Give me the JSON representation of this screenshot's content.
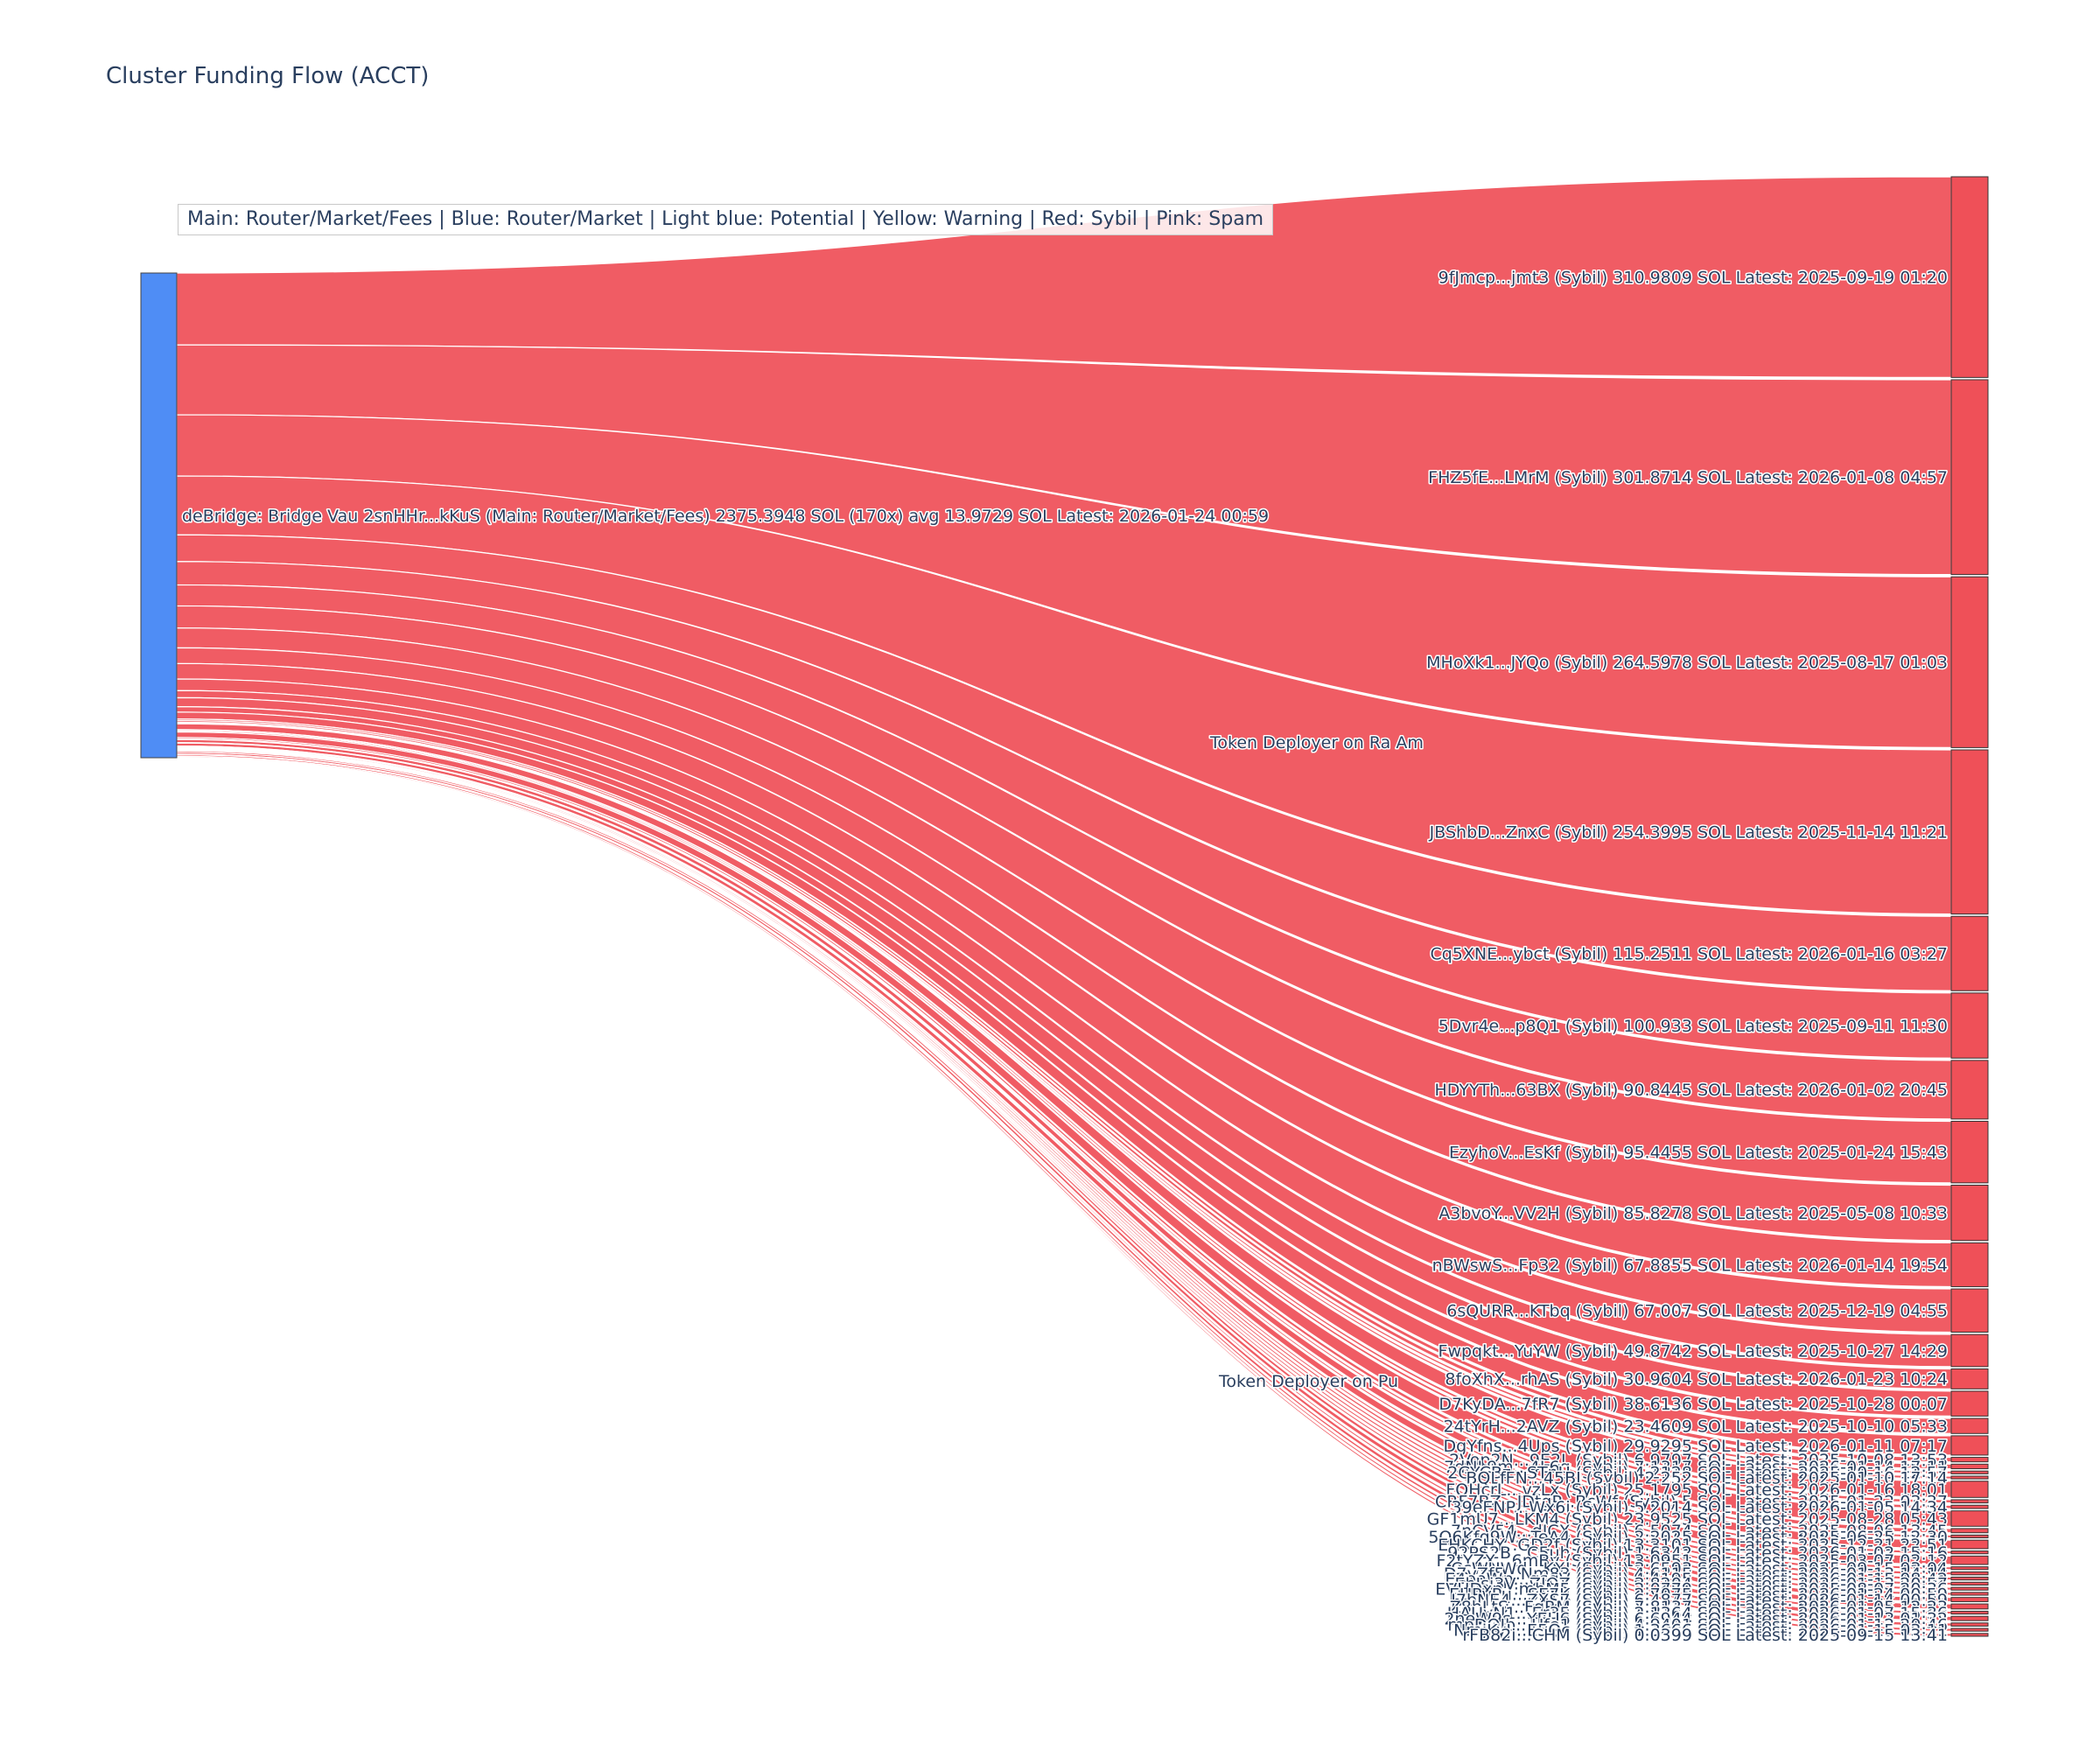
{
  "title": "Cluster Funding Flow (ACCT)",
  "legend_text": "Main: Router/Market/Fees  |  Blue: Router/Market | Light blue: Potential | Yellow: Warning | Red: Sybil | Pink: Spam",
  "colors": {
    "source_node": "#4f8df5",
    "sybil_node": "#ef5058",
    "link": "#ef5058",
    "text": "#2a3f5f"
  },
  "chart_data": {
    "type": "sankey",
    "source": {
      "label": "deBridge: Bridge Vau 2snHHr...kKuS (Main: Router/Market/Fees) 2375.3948 SOL (170x) avg 13.9729 SOL Latest: 2026-01-24 00:59",
      "total_sol": 2375.3948,
      "transfers": 170,
      "avg_sol": 13.9729
    },
    "intermediate_nodes": [
      {
        "label": "Token Deployer on Ra Am"
      },
      {
        "label": "Token Deployer on Pu"
      }
    ],
    "targets": [
      {
        "label": "9fJmcp...jmt3 (Sybil) 310.9809 SOL Latest: 2025-09-19 01:20",
        "value": 310.9809
      },
      {
        "label": "FHZ5fE...LMrM (Sybil) 301.8714 SOL Latest: 2026-01-08 04:57",
        "value": 301.8714
      },
      {
        "label": "MHoXk1...JYQo (Sybil) 264.5978 SOL Latest: 2025-08-17 01:03",
        "value": 264.5978
      },
      {
        "label": "JBShbD...ZnxC (Sybil) 254.3995 SOL Latest: 2025-11-14 11:21",
        "value": 254.3995
      },
      {
        "label": "Cq5XNE...ybct (Sybil) 115.2511 SOL Latest: 2026-01-16 03:27",
        "value": 115.2511
      },
      {
        "label": "5Dvr4e...p8Q1 (Sybil) 100.933 SOL Latest: 2025-09-11 11:30",
        "value": 100.933
      },
      {
        "label": "HDYYTh...63BX (Sybil) 90.8445 SOL Latest: 2026-01-02 20:45",
        "value": 90.8445
      },
      {
        "label": "EzyhoV...EsKf (Sybil) 95.4455 SOL Latest: 2025-01-24 15:43",
        "value": 95.4455
      },
      {
        "label": "A3bvoY...VV2H (Sybil) 85.8278 SOL Latest: 2025-05-08 10:33",
        "value": 85.8278
      },
      {
        "label": "nBWswS...Fp32 (Sybil) 67.8855 SOL Latest: 2026-01-14 19:54",
        "value": 67.8855
      },
      {
        "label": "6sQURR...KTbq (Sybil) 67.007 SOL Latest: 2025-12-19 04:55",
        "value": 67.007
      },
      {
        "label": "Fwpqkt...YuYW (Sybil) 49.8742 SOL Latest: 2025-10-27 14:29",
        "value": 49.8742
      },
      {
        "label": "8foXhX...rhAS (Sybil) 30.9604 SOL Latest: 2026-01-23 10:24",
        "value": 30.9604
      },
      {
        "label": "D7KyDA...7fR7 (Sybil) 38.6136 SOL Latest: 2025-10-28 00:07",
        "value": 38.6136
      },
      {
        "label": "24tYrH...2AVZ (Sybil) 23.4609 SOL Latest: 2025-10-10 05:33",
        "value": 23.4609
      },
      {
        "label": "DgYfns...4Ups (Sybil) 29.9295 SOL Latest: 2026-01-11 07:17",
        "value": 29.9295
      },
      {
        "label": "2Vop2N...9E2L (Sybil) 6.9797 SOL Latest: 2025-10-08 13:53",
        "value": 6.9797
      },
      {
        "label": "7dNL9m...4L6q (Sybil) 7.1317 SOL Latest: 2026-01-14 17:11",
        "value": 7.1317
      },
      {
        "label": "2GYCBz...STnU (Sybil) 4.2128 SOL Latest: 2025-10-16 12:57",
        "value": 4.2128
      },
      {
        "label": "BQLfFN...45BJ (Sybil) 2.252 SOL Latest: 2025-01-10 17:14",
        "value": 2.252
      },
      {
        "label": "FQHcrL...vzLx (Sybil) 25.1795 SOL Latest: 2026-01-16 18:01",
        "value": 25.1795
      },
      {
        "label": "CRF7BZ...JDtgP...BcWf (Sybil) 5 SOL Latest: 2025-01-22 03:37",
        "value": 5
      },
      {
        "label": "39eENP...Wx6i (Sybil) 5.2014 SOL Latest: 2026-01-05 14:34",
        "value": 5.2014
      },
      {
        "label": "GF1mU7...LKM4 (Sybil) 23.9525 SOL Latest: 2025-08-28 05:43",
        "value": 23.9525
      },
      {
        "label": "7nCV54...dJCX (Sybil) 6.5074 SOL Latest: 2025-08-06 13:45",
        "value": 6.5074
      },
      {
        "label": "5Q6Kfq9W...TeA4 (Sybil) 2.2025 SOL Latest: 2025-06-25 12:30",
        "value": 2.2025
      },
      {
        "label": "EHKCHY...GD2f (Sybil) 13.3101 SOL Latest: 2025-12-21 22:51",
        "value": 13.3101
      },
      {
        "label": "92PS2B...C5uh (Sybil) 1.6342 SOL Latest: 2026-01-02 15:16",
        "value": 1.6342
      },
      {
        "label": "F2tYZX...6mBy (Sybil) 13.0951 SOL Latest: 2025-03-07 02:12",
        "value": 13.0951
      },
      {
        "label": "CcWUWd...KXJ (Sybil) 3.6593 SOL Latest: 2025-09-15 03:04",
        "value": 3.6593
      },
      {
        "label": "D7yZf5...Nm83 (Sybil) 4.6115 SOL Latest: 2026-01-13 14:14",
        "value": 4.6115
      },
      {
        "label": "E4ooWp...qsqV (Sybil) 4.4195 SOL Latest: 2026-01-15 08:42",
        "value": 4.4195
      },
      {
        "label": "EhJsi3V...ZJQZ (Sybil) 3.8204 SOL Latest: 2026-01-13 20:57",
        "value": 3.8204
      },
      {
        "label": "EVHDxp...mhM5 (Sybil) 2.0779 SOL Latest: 2025-08-07 20:36",
        "value": 2.0779
      },
      {
        "label": "EUPvPu...SE7K (Sybil) 2.7075 SOL Latest: 2026-01-24 00:59",
        "value": 2.7075
      },
      {
        "label": "J7bNE4...ZXS7 (Sybil) 6.4877 SOL Latest: 2026-01-14 00:59",
        "value": 6.4877
      },
      {
        "label": "Z8hLtS...FgRM (Sybil) 7.8137 SOL Latest: 2026-01-05 12:23",
        "value": 7.8137
      },
      {
        "label": "HAUyN1...Er35 (Sybil) 2.1364 SOL Latest: 2026-01-07 15:36",
        "value": 2.1364
      },
      {
        "label": "2neW9s...YEU6 (Sybil) 6.6944 SOL Latest: 2026-01-13 01:32",
        "value": 6.6944
      },
      {
        "label": "mpDQJb...Ufe1 (Sybil) 4.9401 SOL Latest: 2026-01-12 20:46",
        "value": 4.9401
      },
      {
        "label": "NmjKyJ...E5Qc (Sybil) 1.3666 SOL Latest: 2026-01-15 03:11",
        "value": 1.3666
      },
      {
        "label": "rFB82i...CHM (Sybil) 0.0399 SOL Latest: 2025-09-15 13:41",
        "value": 0.0399
      }
    ]
  }
}
